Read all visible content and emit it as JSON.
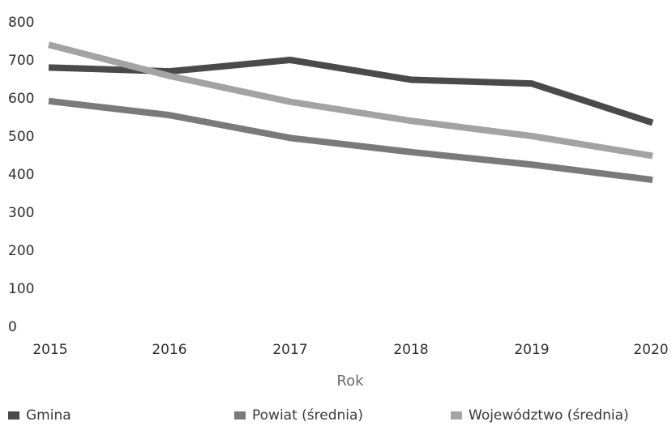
{
  "chart_data": {
    "type": "line",
    "title": "",
    "xlabel": "Rok",
    "ylabel": "",
    "x": [
      2015,
      2016,
      2017,
      2018,
      2019,
      2020
    ],
    "x_tick_labels": [
      "2015",
      "2016",
      "2017",
      "2018",
      "2019",
      "2020"
    ],
    "y_tick_labels": [
      "0",
      "100",
      "200",
      "300",
      "400",
      "500",
      "600",
      "700",
      "800"
    ],
    "ylim": [
      0,
      800
    ],
    "grid": false,
    "legend_position": "bottom",
    "series": [
      {
        "name": "Gmina",
        "color": "#4a4a4a",
        "values": [
          680,
          670,
          700,
          648,
          638,
          535
        ]
      },
      {
        "name": "Powiat (średnia)",
        "color": "#7a7a7a",
        "values": [
          592,
          555,
          495,
          458,
          425,
          385
        ]
      },
      {
        "name": "Województwo (średnia)",
        "color": "#a3a3a3",
        "values": [
          740,
          658,
          590,
          540,
          500,
          448
        ]
      }
    ]
  }
}
